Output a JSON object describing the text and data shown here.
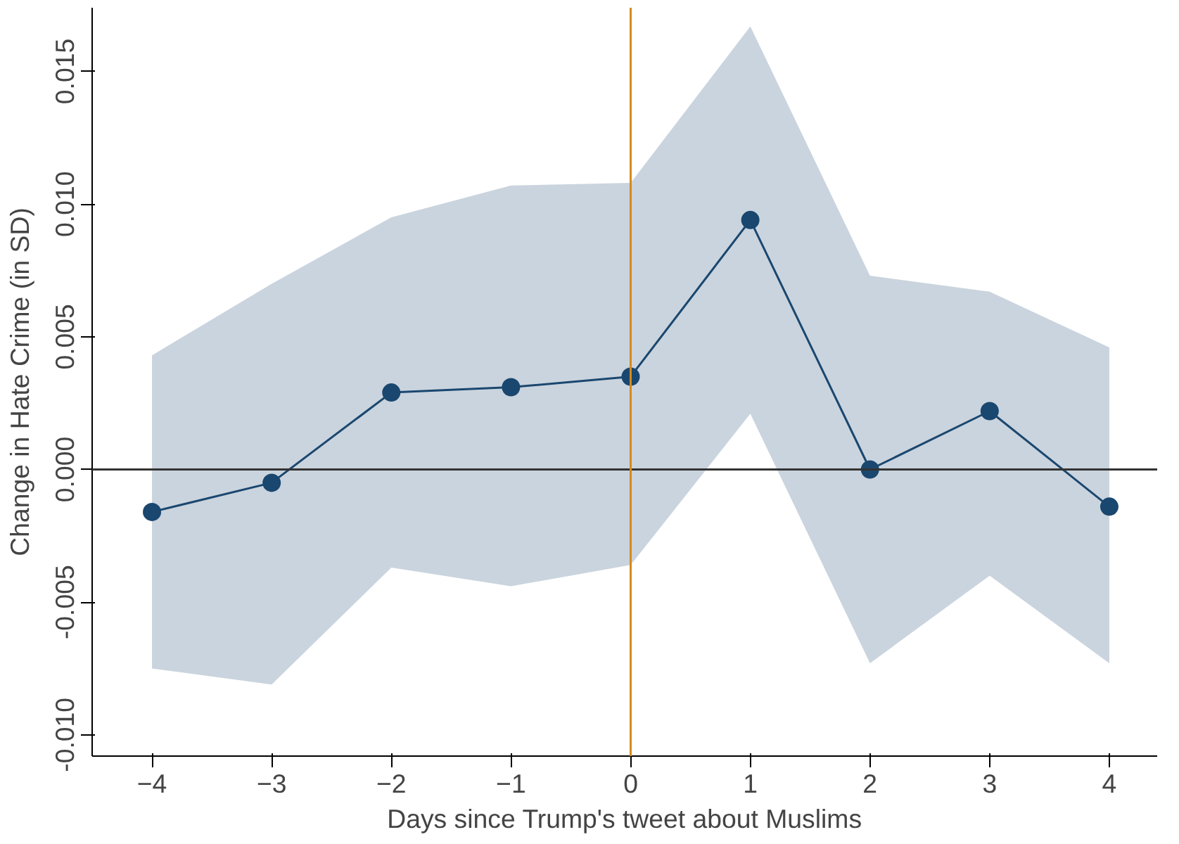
{
  "chart_data": {
    "type": "line",
    "xlabel": "Days since Trump's tweet about Muslims",
    "ylabel": "Change in Hate Crime (in SD)",
    "x": [
      -4,
      -3,
      -2,
      -1,
      0,
      1,
      2,
      3,
      4
    ],
    "series": [
      {
        "color": "#1a476f",
        "values": [
          -0.0016,
          -0.0005,
          0.0029,
          0.0031,
          0.0035,
          0.0094,
          0.0,
          0.0022,
          -0.0014
        ],
        "upper": [
          0.0043,
          0.007,
          0.0095,
          0.0107,
          0.0108,
          0.0167,
          0.0073,
          0.0067,
          0.0046
        ],
        "lower": [
          -0.0075,
          -0.0081,
          -0.0037,
          -0.0044,
          -0.0036,
          0.0021,
          -0.0073,
          -0.004,
          -0.0073
        ]
      }
    ],
    "xlim": [
      -4.5,
      4.4
    ],
    "ylim": [
      -0.0108,
      0.0174
    ],
    "xticks": [
      -4,
      -3,
      -2,
      -1,
      0,
      1,
      2,
      3,
      4
    ],
    "yticks": [
      {
        "value": -0.01,
        "label": "-0.010"
      },
      {
        "value": -0.005,
        "label": "-0.005"
      },
      {
        "value": 0,
        "label": "0.000"
      },
      {
        "value": 0.005,
        "label": "0.005"
      },
      {
        "value": 0.01,
        "label": "0.010"
      },
      {
        "value": 0.015,
        "label": "0.015"
      }
    ],
    "ref_lines": [
      {
        "axis": "y",
        "value": 0,
        "color": "#333333"
      },
      {
        "axis": "x",
        "value": 0,
        "color": "#d58a1c"
      }
    ],
    "marker": "circle",
    "line_style": "solid",
    "grid": false
  }
}
